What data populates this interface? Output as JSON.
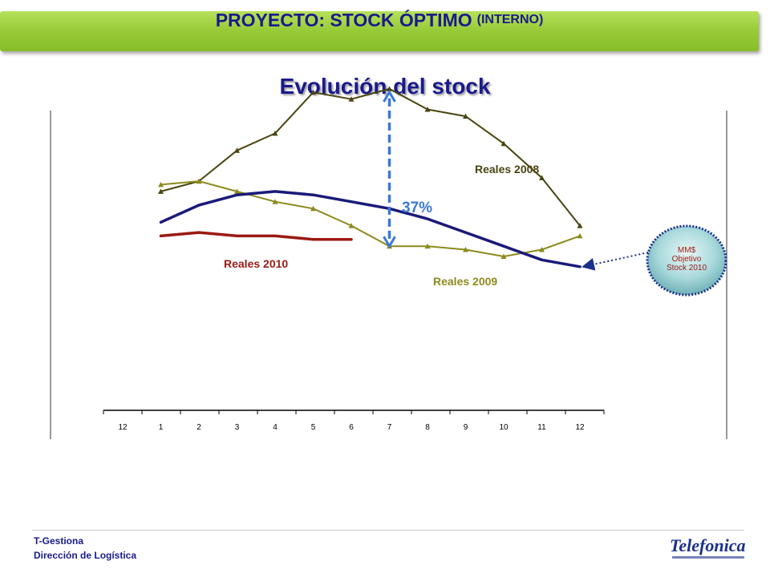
{
  "header": {
    "title_main": "PROYECTO: STOCK ÓPTIMO",
    "title_sub": "(INTERNO)"
  },
  "page_title": "Evolución del stock",
  "chart_data": {
    "type": "line",
    "categories": [
      "12",
      "1",
      "2",
      "3",
      "4",
      "5",
      "6",
      "7",
      "8",
      "9",
      "10",
      "11",
      "12"
    ],
    "series": [
      {
        "name": "Reales 2008",
        "color": "#4a4410",
        "marker": "triangle",
        "values": [
          null,
          64,
          67,
          76,
          81,
          93,
          91,
          94,
          88,
          86,
          78,
          68,
          54
        ]
      },
      {
        "name": "Reales 2009",
        "color": "#8c8a1c",
        "marker": "triangle",
        "values": [
          null,
          66,
          67,
          64,
          61,
          59,
          54,
          48,
          48,
          47,
          45,
          47,
          51
        ]
      },
      {
        "name": "",
        "color": "#1a1a7a",
        "marker": "none",
        "values": [
          null,
          55,
          60,
          63,
          64,
          63,
          61,
          59,
          56,
          52,
          48,
          44,
          42
        ]
      },
      {
        "name": "Reales 2010",
        "color": "#9b1a14",
        "marker": "none",
        "values": [
          null,
          51,
          52,
          51,
          51,
          50,
          50,
          null,
          null,
          null,
          null,
          null,
          null
        ]
      }
    ],
    "ylim": [
      0,
      120
    ],
    "annotations": {
      "gap_percent": "37%",
      "bubble": [
        "MM$",
        "Objetivo",
        "Stock 2010"
      ]
    }
  },
  "footer": {
    "line1": "T-Gestiona",
    "line2": "Dirección de Logística",
    "logo": "Telefonica"
  }
}
